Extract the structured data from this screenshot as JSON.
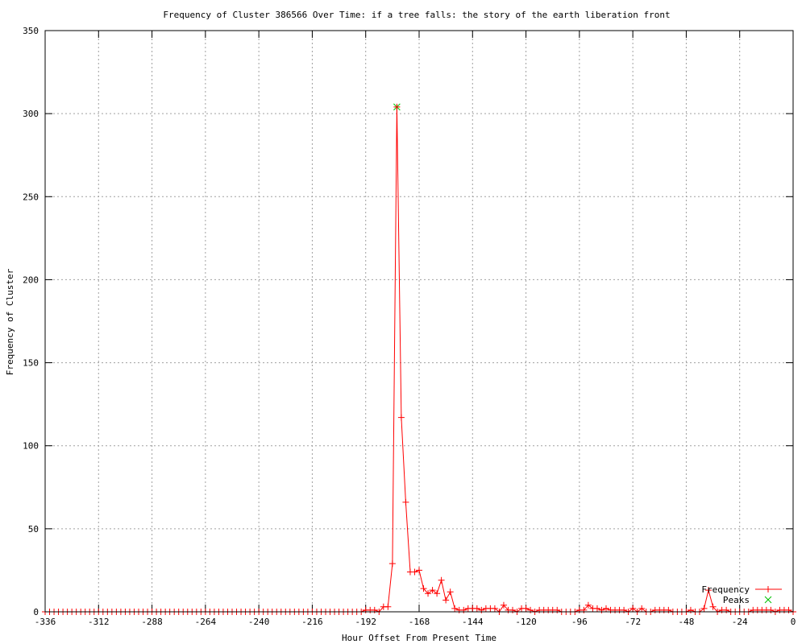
{
  "chart_data": {
    "type": "line",
    "title": "Frequency of Cluster 386566 Over Time: if a tree falls: the story of the earth liberation front",
    "xlabel": "Hour Offset From Present Time",
    "ylabel": "Frequency of Cluster",
    "xlim": [
      -336,
      0
    ],
    "ylim": [
      0,
      350
    ],
    "xticks": [
      -336,
      -312,
      -288,
      -264,
      -240,
      -216,
      -192,
      -168,
      -144,
      -120,
      -96,
      -72,
      -48,
      -24,
      0
    ],
    "yticks": [
      0,
      50,
      100,
      150,
      200,
      250,
      300,
      350
    ],
    "grid": true,
    "legend_position": "bottom-right",
    "series": [
      {
        "name": "Frequency",
        "color": "#ff0000",
        "marker": "plus",
        "x": [
          -336,
          -334,
          -332,
          -330,
          -328,
          -326,
          -324,
          -322,
          -320,
          -318,
          -316,
          -314,
          -312,
          -310,
          -308,
          -306,
          -304,
          -302,
          -300,
          -298,
          -296,
          -294,
          -292,
          -290,
          -288,
          -286,
          -284,
          -282,
          -280,
          -278,
          -276,
          -274,
          -272,
          -270,
          -268,
          -266,
          -264,
          -262,
          -260,
          -258,
          -256,
          -254,
          -252,
          -250,
          -248,
          -246,
          -244,
          -242,
          -240,
          -238,
          -236,
          -234,
          -232,
          -230,
          -228,
          -226,
          -224,
          -222,
          -220,
          -218,
          -216,
          -214,
          -212,
          -210,
          -208,
          -206,
          -204,
          -202,
          -200,
          -198,
          -196,
          -194,
          -192,
          -190,
          -188,
          -186,
          -184,
          -182,
          -180,
          -178,
          -176,
          -174,
          -172,
          -170,
          -168,
          -166,
          -164,
          -162,
          -160,
          -158,
          -156,
          -154,
          -152,
          -150,
          -148,
          -146,
          -144,
          -142,
          -140,
          -138,
          -136,
          -134,
          -132,
          -130,
          -128,
          -126,
          -124,
          -122,
          -120,
          -118,
          -116,
          -114,
          -112,
          -110,
          -108,
          -106,
          -104,
          -102,
          -100,
          -98,
          -96,
          -94,
          -92,
          -90,
          -88,
          -86,
          -84,
          -82,
          -80,
          -78,
          -76,
          -74,
          -72,
          -70,
          -68,
          -66,
          -64,
          -62,
          -60,
          -58,
          -56,
          -54,
          -52,
          -50,
          -48,
          -46,
          -44,
          -42,
          -40,
          -38,
          -36,
          -34,
          -32,
          -30,
          -28,
          -26,
          -24,
          -22,
          -20,
          -18,
          -16,
          -14,
          -12,
          -10,
          -8,
          -6,
          -4,
          -2,
          0
        ],
        "y": [
          0,
          0,
          0,
          0,
          0,
          0,
          0,
          0,
          0,
          0,
          0,
          0,
          0,
          0,
          0,
          0,
          0,
          0,
          0,
          0,
          0,
          0,
          0,
          0,
          0,
          0,
          0,
          0,
          0,
          0,
          0,
          0,
          0,
          0,
          0,
          0,
          0,
          0,
          0,
          0,
          0,
          0,
          0,
          0,
          0,
          0,
          0,
          0,
          0,
          0,
          0,
          0,
          0,
          0,
          0,
          0,
          0,
          0,
          0,
          0,
          0,
          0,
          0,
          0,
          0,
          0,
          0,
          0,
          0,
          0,
          0,
          0,
          1,
          1,
          1,
          0,
          3,
          3,
          29,
          304,
          117,
          66,
          24,
          24,
          25,
          14,
          11,
          13,
          11,
          19,
          7,
          12,
          2,
          1,
          1,
          2,
          2,
          2,
          1,
          2,
          2,
          2,
          0,
          4,
          1,
          1,
          0,
          2,
          2,
          1,
          0,
          1,
          1,
          1,
          1,
          1,
          0,
          0,
          0,
          0,
          1,
          1,
          4,
          2,
          2,
          1,
          2,
          1,
          1,
          1,
          1,
          0,
          2,
          0,
          2,
          0,
          0,
          1,
          1,
          1,
          1,
          0,
          0,
          0,
          0,
          1,
          0,
          0,
          2,
          13,
          3,
          0,
          1,
          1,
          0,
          0,
          0,
          0,
          0,
          1,
          1,
          1,
          1,
          1,
          0,
          1,
          1,
          1,
          0
        ]
      },
      {
        "name": "Peaks",
        "color": "#00c000",
        "marker": "cross",
        "x": [
          -178
        ],
        "y": [
          304
        ]
      }
    ]
  }
}
